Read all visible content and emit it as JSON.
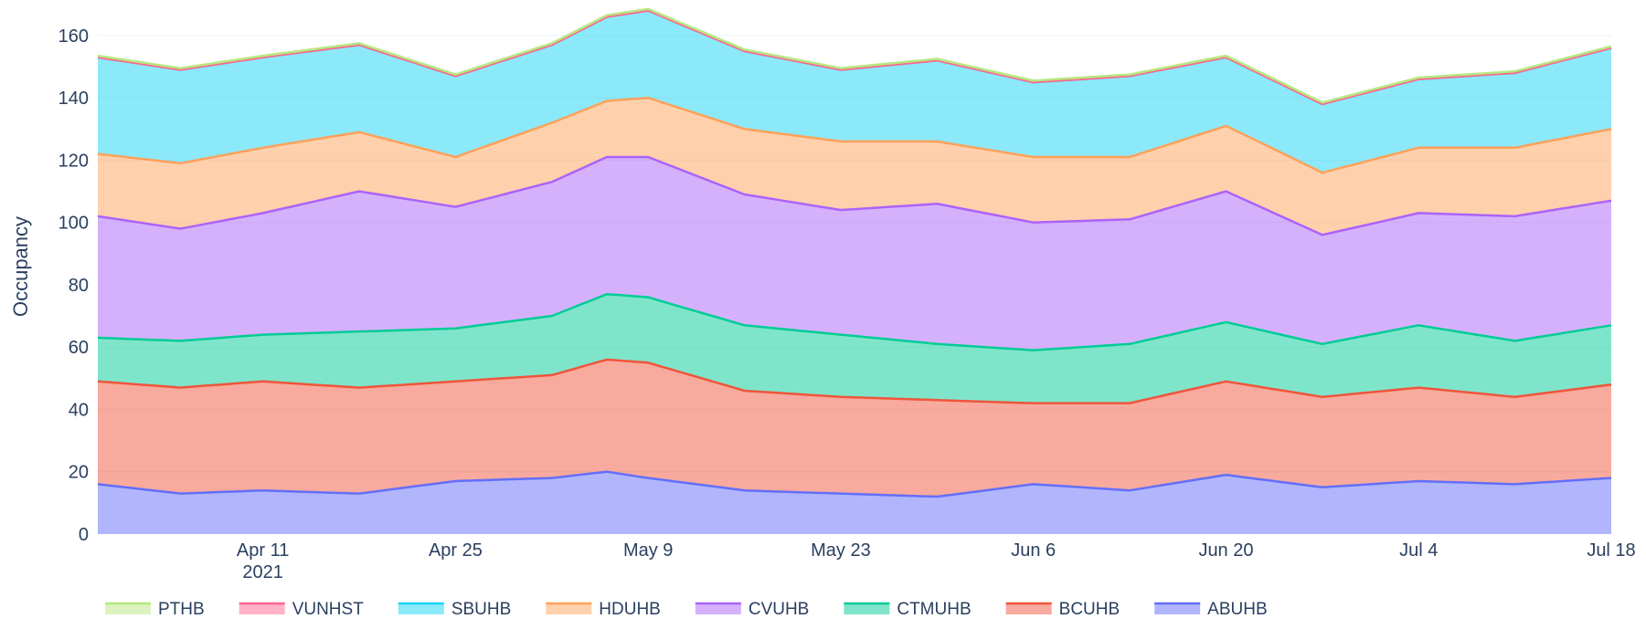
{
  "chart_data": {
    "type": "area",
    "stacked": true,
    "xlabel": "",
    "ylabel": "Occupancy",
    "ylim": [
      0,
      167
    ],
    "y_ticks": [
      0,
      20,
      40,
      60,
      80,
      100,
      120,
      140,
      160
    ],
    "x_range": [
      "2021-03-30",
      "2021-07-18"
    ],
    "x_ticks": [
      {
        "date": "2021-04-11",
        "label": "Apr 11",
        "sublabel": "2021"
      },
      {
        "date": "2021-04-25",
        "label": "Apr 25",
        "sublabel": ""
      },
      {
        "date": "2021-05-09",
        "label": "May 9",
        "sublabel": ""
      },
      {
        "date": "2021-05-23",
        "label": "May 23",
        "sublabel": ""
      },
      {
        "date": "2021-06-06",
        "label": "Jun 6",
        "sublabel": ""
      },
      {
        "date": "2021-06-20",
        "label": "Jun 20",
        "sublabel": ""
      },
      {
        "date": "2021-07-04",
        "label": "Jul 4",
        "sublabel": ""
      },
      {
        "date": "2021-07-18",
        "label": "Jul 18",
        "sublabel": ""
      }
    ],
    "grid": "horizontal",
    "legend_position": "bottom",
    "series": [
      {
        "name": "ABUHB",
        "color": "#636efa",
        "points": [
          [
            "2021-03-30",
            16
          ],
          [
            "2021-04-05",
            13
          ],
          [
            "2021-04-11",
            14
          ],
          [
            "2021-04-18",
            13
          ],
          [
            "2021-04-25",
            17
          ],
          [
            "2021-05-02",
            18
          ],
          [
            "2021-05-06",
            20
          ],
          [
            "2021-05-09",
            18
          ],
          [
            "2021-05-16",
            14
          ],
          [
            "2021-05-23",
            13
          ],
          [
            "2021-05-30",
            12
          ],
          [
            "2021-06-06",
            16
          ],
          [
            "2021-06-13",
            14
          ],
          [
            "2021-06-20",
            19
          ],
          [
            "2021-06-27",
            15
          ],
          [
            "2021-07-04",
            17
          ],
          [
            "2021-07-11",
            16
          ],
          [
            "2021-07-18",
            18
          ]
        ]
      },
      {
        "name": "BCUHB",
        "color": "#ef553b",
        "points": [
          [
            "2021-03-30",
            33
          ],
          [
            "2021-04-05",
            34
          ],
          [
            "2021-04-11",
            35
          ],
          [
            "2021-04-18",
            34
          ],
          [
            "2021-04-25",
            32
          ],
          [
            "2021-05-02",
            33
          ],
          [
            "2021-05-06",
            36
          ],
          [
            "2021-05-09",
            37
          ],
          [
            "2021-05-16",
            32
          ],
          [
            "2021-05-23",
            31
          ],
          [
            "2021-05-30",
            31
          ],
          [
            "2021-06-06",
            26
          ],
          [
            "2021-06-13",
            28
          ],
          [
            "2021-06-20",
            30
          ],
          [
            "2021-06-27",
            29
          ],
          [
            "2021-07-04",
            30
          ],
          [
            "2021-07-11",
            28
          ],
          [
            "2021-07-18",
            30
          ]
        ]
      },
      {
        "name": "CTMUHB",
        "color": "#00cc96",
        "points": [
          [
            "2021-03-30",
            14
          ],
          [
            "2021-04-05",
            15
          ],
          [
            "2021-04-11",
            15
          ],
          [
            "2021-04-18",
            18
          ],
          [
            "2021-04-25",
            17
          ],
          [
            "2021-05-02",
            19
          ],
          [
            "2021-05-06",
            21
          ],
          [
            "2021-05-09",
            21
          ],
          [
            "2021-05-16",
            21
          ],
          [
            "2021-05-23",
            20
          ],
          [
            "2021-05-30",
            18
          ],
          [
            "2021-06-06",
            17
          ],
          [
            "2021-06-13",
            19
          ],
          [
            "2021-06-20",
            19
          ],
          [
            "2021-06-27",
            17
          ],
          [
            "2021-07-04",
            20
          ],
          [
            "2021-07-11",
            18
          ],
          [
            "2021-07-18",
            19
          ]
        ]
      },
      {
        "name": "CVUHB",
        "color": "#ab63fa",
        "points": [
          [
            "2021-03-30",
            39
          ],
          [
            "2021-04-05",
            36
          ],
          [
            "2021-04-11",
            39
          ],
          [
            "2021-04-18",
            45
          ],
          [
            "2021-04-25",
            39
          ],
          [
            "2021-05-02",
            43
          ],
          [
            "2021-05-06",
            44
          ],
          [
            "2021-05-09",
            45
          ],
          [
            "2021-05-16",
            42
          ],
          [
            "2021-05-23",
            40
          ],
          [
            "2021-05-30",
            45
          ],
          [
            "2021-06-06",
            41
          ],
          [
            "2021-06-13",
            40
          ],
          [
            "2021-06-20",
            42
          ],
          [
            "2021-06-27",
            35
          ],
          [
            "2021-07-04",
            36
          ],
          [
            "2021-07-11",
            40
          ],
          [
            "2021-07-18",
            40
          ]
        ]
      },
      {
        "name": "HDUHB",
        "color": "#ffa15a",
        "points": [
          [
            "2021-03-30",
            20
          ],
          [
            "2021-04-05",
            21
          ],
          [
            "2021-04-11",
            21
          ],
          [
            "2021-04-18",
            19
          ],
          [
            "2021-04-25",
            16
          ],
          [
            "2021-05-02",
            19
          ],
          [
            "2021-05-06",
            18
          ],
          [
            "2021-05-09",
            19
          ],
          [
            "2021-05-16",
            21
          ],
          [
            "2021-05-23",
            22
          ],
          [
            "2021-05-30",
            20
          ],
          [
            "2021-06-06",
            21
          ],
          [
            "2021-06-13",
            20
          ],
          [
            "2021-06-20",
            21
          ],
          [
            "2021-06-27",
            20
          ],
          [
            "2021-07-04",
            21
          ],
          [
            "2021-07-11",
            22
          ],
          [
            "2021-07-18",
            23
          ]
        ]
      },
      {
        "name": "SBUHB",
        "color": "#19d3f3",
        "points": [
          [
            "2021-03-30",
            31
          ],
          [
            "2021-04-05",
            30
          ],
          [
            "2021-04-11",
            29
          ],
          [
            "2021-04-18",
            28
          ],
          [
            "2021-04-25",
            26
          ],
          [
            "2021-05-02",
            25
          ],
          [
            "2021-05-06",
            27
          ],
          [
            "2021-05-09",
            28
          ],
          [
            "2021-05-16",
            25
          ],
          [
            "2021-05-23",
            23
          ],
          [
            "2021-05-30",
            26
          ],
          [
            "2021-06-06",
            24
          ],
          [
            "2021-06-13",
            26
          ],
          [
            "2021-06-20",
            22
          ],
          [
            "2021-06-27",
            22
          ],
          [
            "2021-07-04",
            22
          ],
          [
            "2021-07-11",
            24
          ],
          [
            "2021-07-18",
            26
          ]
        ]
      },
      {
        "name": "VUNHST",
        "color": "#ff6692",
        "points": [
          [
            "2021-03-30",
            0
          ],
          [
            "2021-04-05",
            0
          ],
          [
            "2021-04-11",
            0
          ],
          [
            "2021-04-18",
            0
          ],
          [
            "2021-04-25",
            0
          ],
          [
            "2021-05-02",
            0
          ],
          [
            "2021-05-06",
            0
          ],
          [
            "2021-05-09",
            0
          ],
          [
            "2021-05-16",
            0
          ],
          [
            "2021-05-23",
            0
          ],
          [
            "2021-05-30",
            0
          ],
          [
            "2021-06-06",
            0
          ],
          [
            "2021-06-13",
            0
          ],
          [
            "2021-06-20",
            0
          ],
          [
            "2021-06-27",
            0
          ],
          [
            "2021-07-04",
            0
          ],
          [
            "2021-07-11",
            0
          ],
          [
            "2021-07-18",
            0
          ]
        ]
      },
      {
        "name": "PTHB",
        "color": "#b6e880",
        "points": [
          [
            "2021-03-30",
            0.5
          ],
          [
            "2021-04-05",
            0.5
          ],
          [
            "2021-04-11",
            0.5
          ],
          [
            "2021-04-18",
            0.5
          ],
          [
            "2021-04-25",
            0.5
          ],
          [
            "2021-05-02",
            0.5
          ],
          [
            "2021-05-06",
            0.5
          ],
          [
            "2021-05-09",
            0.5
          ],
          [
            "2021-05-16",
            0.5
          ],
          [
            "2021-05-23",
            0.5
          ],
          [
            "2021-05-30",
            0.5
          ],
          [
            "2021-06-06",
            0.5
          ],
          [
            "2021-06-13",
            0.5
          ],
          [
            "2021-06-20",
            0.5
          ],
          [
            "2021-06-27",
            0.5
          ],
          [
            "2021-07-04",
            0.5
          ],
          [
            "2021-07-11",
            0.5
          ],
          [
            "2021-07-18",
            0.5
          ]
        ]
      }
    ],
    "legend_order": [
      "PTHB",
      "VUNHST",
      "SBUHB",
      "HDUHB",
      "CVUHB",
      "CTMUHB",
      "BCUHB",
      "ABUHB"
    ]
  }
}
